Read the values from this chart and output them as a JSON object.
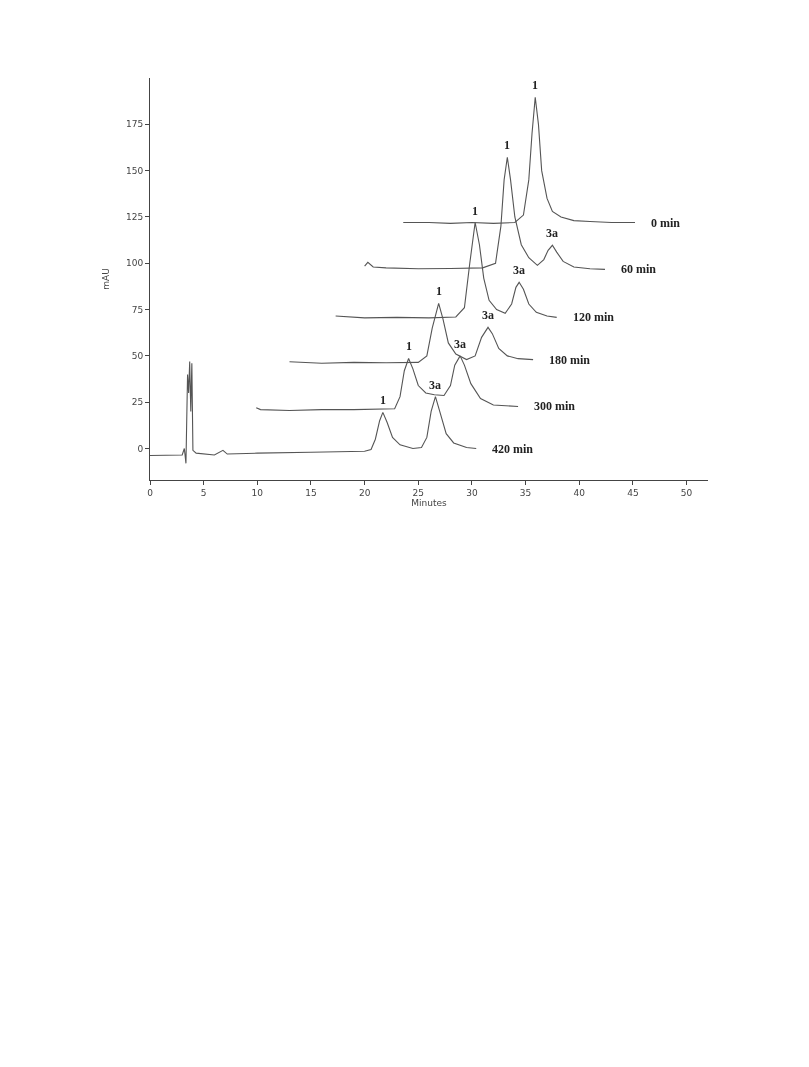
{
  "chart_data": {
    "type": "line",
    "xlabel": "Minutes",
    "ylabel": "mAU",
    "xlim": [
      0,
      52
    ],
    "ylim": [
      -17,
      200
    ],
    "xticks": [
      0,
      5,
      10,
      15,
      20,
      25,
      30,
      35,
      40,
      45,
      50
    ],
    "yticks": [
      0,
      25,
      50,
      75,
      100,
      125,
      150,
      175
    ],
    "marker": "none",
    "line_style": "solid",
    "series": [
      {
        "name": "0 min",
        "color": "#555555",
        "x": [
          23.6,
          26,
          28,
          30,
          32,
          34,
          34.8,
          35.3,
          35.6,
          35.9,
          36.2,
          36.5,
          37,
          37.5,
          38.3,
          39.5,
          41,
          43,
          45.2
        ],
        "values": [
          122,
          122,
          121.5,
          122,
          121.5,
          122,
          126,
          145,
          170,
          189.6,
          175,
          150,
          135,
          128,
          125,
          123,
          122.5,
          122,
          122
        ]
      },
      {
        "name": "60 min",
        "color": "#555555",
        "x": [
          20.0,
          20.3,
          20.8,
          22,
          25,
          28,
          31,
          32.2,
          32.7,
          33.0,
          33.3,
          33.6,
          34.0,
          34.6,
          35.3,
          36.1,
          36.7,
          37.1,
          37.5,
          37.9,
          38.5,
          39.5,
          41,
          42.4
        ],
        "values": [
          98.5,
          100.5,
          98,
          97.5,
          97,
          97.2,
          97.5,
          100,
          120,
          145,
          157.2,
          145,
          125,
          110,
          103,
          98.9,
          102,
          107,
          109.7,
          106,
          101,
          98,
          97,
          96.7
        ]
      },
      {
        "name": "120 min",
        "color": "#555555",
        "x": [
          17.3,
          20,
          23,
          26,
          28.5,
          29.3,
          29.8,
          30.3,
          30.7,
          31.1,
          31.6,
          32.3,
          33.1,
          33.7,
          34.1,
          34.4,
          34.8,
          35.3,
          36,
          37,
          37.9
        ],
        "values": [
          71.5,
          70.5,
          70.8,
          70.5,
          71,
          76,
          100,
          122,
          110,
          92,
          80,
          75,
          73,
          78,
          87,
          89.7,
          86,
          78,
          73.5,
          71.5,
          70.8
        ]
      },
      {
        "name": "180 min",
        "color": "#555555",
        "x": [
          13,
          16,
          19,
          22,
          25,
          25.8,
          26.3,
          26.9,
          27.3,
          27.8,
          28.5,
          29.5,
          30.3,
          30.9,
          31.5,
          31.9,
          32.5,
          33.3,
          34.3,
          35.7
        ],
        "values": [
          46.8,
          46,
          46.5,
          46.3,
          46.5,
          50,
          65,
          78.3,
          70,
          57,
          51,
          48,
          50,
          60,
          65.4,
          62,
          54,
          50,
          48.5,
          48
        ]
      },
      {
        "name": "300 min",
        "color": "#555555",
        "x": [
          9.9,
          10.3,
          13,
          16,
          19,
          22.8,
          23.3,
          23.7,
          24.1,
          24.5,
          25.0,
          25.7,
          26.5,
          27.4,
          28.0,
          28.4,
          28.9,
          29.3,
          29.9,
          30.8,
          32,
          34.3
        ],
        "values": [
          22,
          21,
          20.5,
          21,
          21,
          21.5,
          28,
          42,
          48.6,
          43,
          34,
          30,
          29,
          28.6,
          34,
          45,
          50,
          45,
          35,
          27,
          23.5,
          22.7
        ]
      },
      {
        "name": "420 min",
        "color": "#555555",
        "x": [
          0,
          3.0,
          3.2,
          3.35,
          3.5,
          3.6,
          3.7,
          3.8,
          3.9,
          4.0,
          4.3,
          6.0,
          6.8,
          7.2,
          10,
          15,
          20,
          20.6,
          21.0,
          21.4,
          21.7,
          22.1,
          22.6,
          23.3,
          24.5,
          25.3,
          25.8,
          26.2,
          26.6,
          27.0,
          27.6,
          28.3,
          29.5,
          30.4
        ],
        "values": [
          -3.8,
          -3.5,
          0,
          -8,
          40,
          30,
          47,
          20,
          46,
          -1,
          -2.5,
          -3.5,
          -1,
          -3,
          -2.5,
          -2,
          -1.5,
          -0.5,
          5,
          15,
          19.5,
          14,
          6,
          2,
          0,
          0.5,
          6,
          20,
          28,
          20,
          8,
          3,
          0.5,
          0
        ]
      }
    ],
    "annotations": [
      {
        "text": "1",
        "x": 35.9,
        "y": 189.6
      },
      {
        "text": "1",
        "x": 33.3,
        "y": 157.2
      },
      {
        "text": "3a",
        "x": 37.5,
        "y": 109.7
      },
      {
        "text": "1",
        "x": 30.3,
        "y": 122
      },
      {
        "text": "3a",
        "x": 34.4,
        "y": 89.7
      },
      {
        "text": "1",
        "x": 26.9,
        "y": 78.3
      },
      {
        "text": "3a",
        "x": 31.5,
        "y": 65.4
      },
      {
        "text": "1",
        "x": 24.1,
        "y": 48.6
      },
      {
        "text": "3a",
        "x": 28.9,
        "y": 50
      },
      {
        "text": "1",
        "x": 21.7,
        "y": 19.5
      },
      {
        "text": "3a",
        "x": 26.6,
        "y": 28
      }
    ]
  }
}
